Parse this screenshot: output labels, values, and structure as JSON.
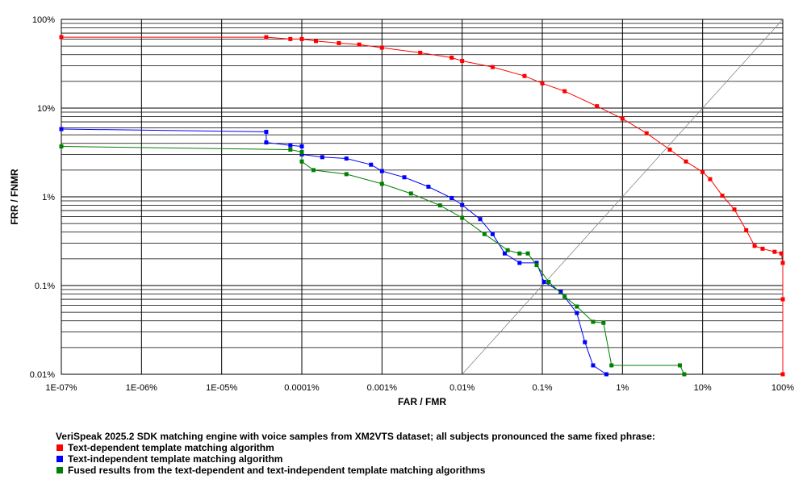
{
  "chart_data": {
    "type": "line",
    "xlabel": "FAR / FMR",
    "ylabel": "FRR / FNMR",
    "xscale": "log",
    "yscale": "log",
    "xlim": [
      1e-07,
      100
    ],
    "ylim": [
      0.01,
      100
    ],
    "xticks": [
      {
        "value": 1e-07,
        "label": "1E-07%"
      },
      {
        "value": 1e-06,
        "label": "1E-06%"
      },
      {
        "value": 1e-05,
        "label": "1E-05%"
      },
      {
        "value": 0.0001,
        "label": "0.0001%"
      },
      {
        "value": 0.001,
        "label": "0.001%"
      },
      {
        "value": 0.01,
        "label": "0.01%"
      },
      {
        "value": 0.1,
        "label": "0.1%"
      },
      {
        "value": 1,
        "label": "1%"
      },
      {
        "value": 10,
        "label": "10%"
      },
      {
        "value": 100,
        "label": "100%"
      }
    ],
    "yticks": [
      {
        "value": 0.01,
        "label": "0.01%"
      },
      {
        "value": 0.1,
        "label": "0.1%"
      },
      {
        "value": 1,
        "label": "1%"
      },
      {
        "value": 10,
        "label": "10%"
      },
      {
        "value": 100,
        "label": "100%"
      }
    ],
    "grid": true,
    "minor_y_grid": true,
    "diagonal": true,
    "legend_title": "VeriSpeak 2025.2 SDK matching engine with voice samples from XM2VTS dataset; all subjects pronounced the same fixed phrase:",
    "legend": "bottom-left",
    "series": [
      {
        "name": "Text-dependent template matching algorithm",
        "color": "#ff0000",
        "x": [
          1e-07,
          3.6e-05,
          7.2e-05,
          0.0001,
          0.00015,
          0.00029,
          0.00052,
          0.001,
          0.003,
          0.0074,
          0.01,
          0.024,
          0.06,
          0.1,
          0.19,
          0.48,
          1,
          2,
          3.9,
          6.2,
          10,
          12.4,
          17.6,
          24.9,
          35,
          44.5,
          56,
          79,
          96,
          100,
          100,
          100
        ],
        "values": [
          63,
          63,
          60,
          60,
          57,
          54,
          52,
          48,
          42,
          37,
          34,
          29,
          23,
          19,
          15.5,
          10.5,
          7.6,
          5.2,
          3.4,
          2.5,
          1.9,
          1.58,
          1.03,
          0.72,
          0.42,
          0.28,
          0.26,
          0.24,
          0.23,
          0.18,
          0.07,
          0.01
        ]
      },
      {
        "name": "Text-independent template matching algorithm",
        "color": "#0000ff",
        "x": [
          1e-07,
          3.6e-05,
          3.6e-05,
          7.2e-05,
          0.0001,
          0.0001,
          0.00018,
          0.00036,
          0.00073,
          0.001,
          0.0019,
          0.0038,
          0.0074,
          0.01,
          0.0168,
          0.024,
          0.034,
          0.052,
          0.085,
          0.105,
          0.17,
          0.27,
          0.34,
          0.43,
          0.63
        ],
        "values": [
          5.8,
          5.4,
          4.1,
          3.8,
          3.7,
          3.0,
          2.8,
          2.7,
          2.3,
          1.95,
          1.66,
          1.3,
          0.97,
          0.81,
          0.56,
          0.38,
          0.23,
          0.18,
          0.18,
          0.11,
          0.085,
          0.049,
          0.023,
          0.0126,
          0.01
        ]
      },
      {
        "name": "Fused results from the text-dependent and text-independent template matching algorithms",
        "color": "#008000",
        "x": [
          1e-07,
          7.2e-05,
          0.0001,
          0.0001,
          0.00014,
          0.00036,
          0.001,
          0.0023,
          0.0053,
          0.01,
          0.019,
          0.037,
          0.052,
          0.066,
          0.085,
          0.12,
          0.19,
          0.27,
          0.43,
          0.58,
          0.73,
          5.2,
          5.9
        ],
        "values": [
          3.7,
          3.4,
          3.2,
          2.5,
          2.0,
          1.8,
          1.4,
          1.09,
          0.8,
          0.58,
          0.38,
          0.25,
          0.23,
          0.23,
          0.17,
          0.11,
          0.075,
          0.058,
          0.039,
          0.038,
          0.0126,
          0.0126,
          0.01
        ]
      }
    ]
  }
}
